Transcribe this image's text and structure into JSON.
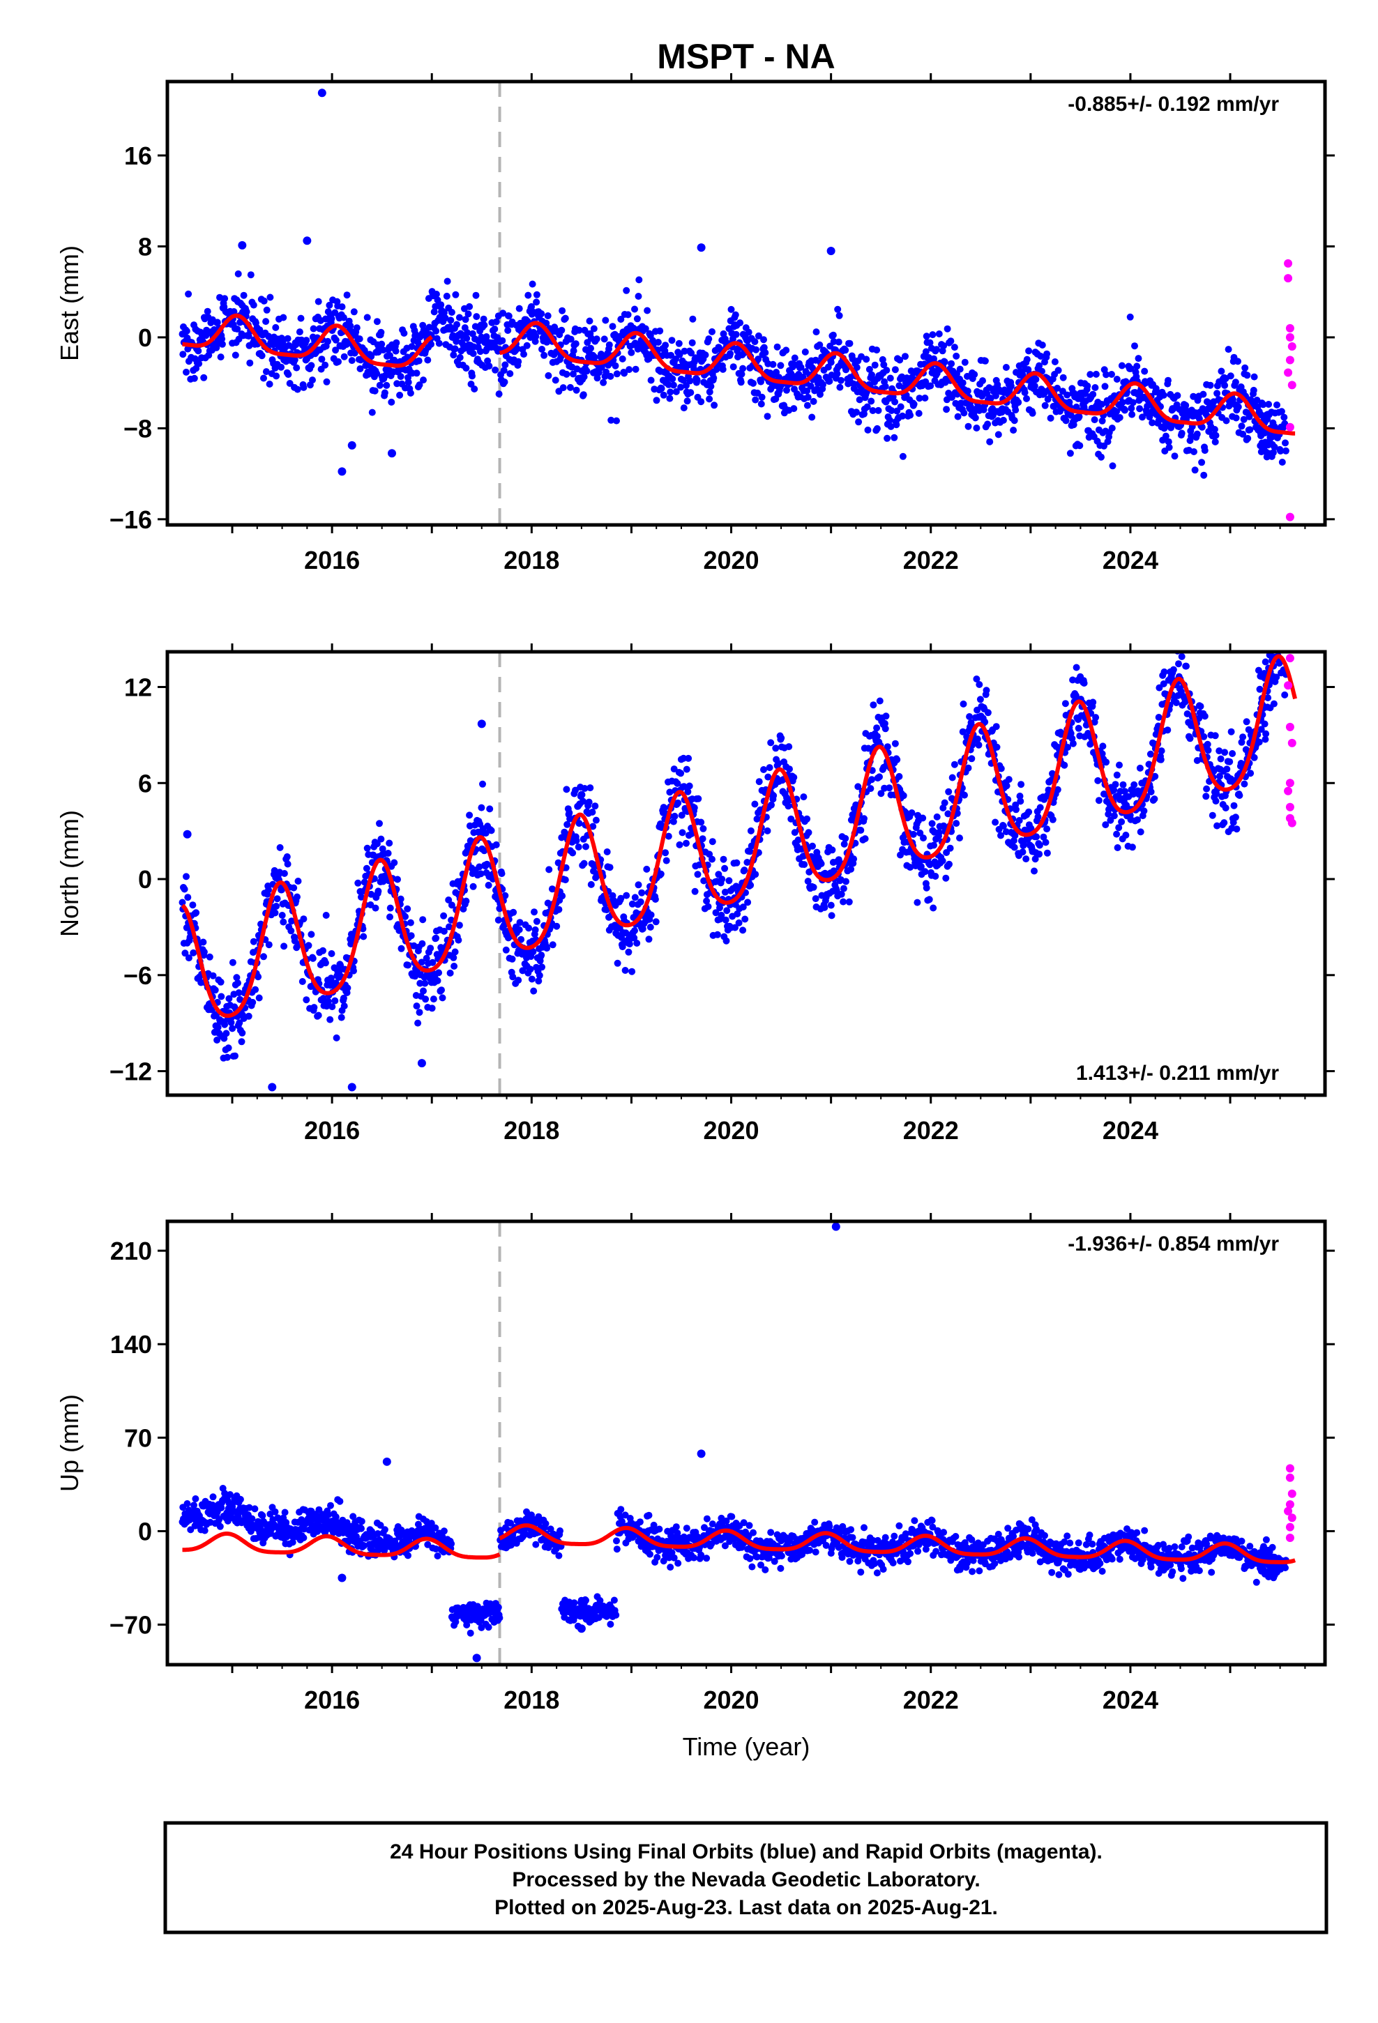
{
  "title": "MSPT - NA",
  "footer": {
    "lines": [
      "24 Hour Positions Using Final Orbits (blue) and Rapid Orbits (magenta).",
      "Processed by the Nevada Geodetic Laboratory.",
      "Plotted on 2025-Aug-23. Last data on 2025-Aug-21."
    ]
  },
  "colors": {
    "final": "#0000ff",
    "rapid": "#ff00ff",
    "model": "#ff0000",
    "offset_line": "#b4b4b4",
    "frame": "#000000"
  },
  "chart_data": [
    {
      "type": "scatter",
      "name": "east",
      "ylabel": "East (mm)",
      "xlim": [
        2014.35,
        2025.95
      ],
      "ylim": [
        -16.5,
        22.5
      ],
      "yticks": [
        -16,
        -8,
        0,
        8,
        16
      ],
      "xticks": [
        2016,
        2018,
        2020,
        2022,
        2024
      ],
      "tick_labels": [
        "2016",
        "2018",
        "2020",
        "2022",
        "2024"
      ],
      "rate_label": "-0.885+/- 0.192 mm/yr",
      "rate_position": "top-right",
      "offset_epoch": 2017.68,
      "model": {
        "trend_start": 2014.5,
        "trend": [
          2.5,
          -0.885
        ],
        "annual": 1.5,
        "phase": 0.05,
        "semi": 0.4,
        "steps": [
          [
            2014.5,
            2017.0,
            -2.0
          ],
          [
            2017.68,
            2025.95,
            0.0
          ]
        ]
      },
      "scatter_sd": 1.6,
      "outliers_final": [
        [
          2015.9,
          21.5
        ],
        [
          2016.1,
          -11.8
        ],
        [
          2016.2,
          -9.5
        ],
        [
          2016.6,
          -10.2
        ],
        [
          2015.75,
          8.5
        ],
        [
          2015.1,
          8.1
        ],
        [
          2019.7,
          7.9
        ],
        [
          2021.0,
          7.6
        ]
      ],
      "rapid_points": [
        [
          2025.58,
          6.5
        ],
        [
          2025.58,
          5.2
        ],
        [
          2025.6,
          0.8
        ],
        [
          2025.6,
          0.0
        ],
        [
          2025.62,
          -0.8
        ],
        [
          2025.6,
          -2.0
        ],
        [
          2025.58,
          -3.1
        ],
        [
          2025.62,
          -4.2
        ],
        [
          2025.6,
          -7.9
        ],
        [
          2025.6,
          -15.8
        ]
      ]
    },
    {
      "type": "scatter",
      "name": "north",
      "ylabel": "North (mm)",
      "xlim": [
        2014.35,
        2025.95
      ],
      "ylim": [
        -13.5,
        14.2
      ],
      "yticks": [
        -12,
        -6,
        0,
        6,
        12
      ],
      "xticks": [
        2016,
        2018,
        2020,
        2022,
        2024
      ],
      "tick_labels": [
        "2016",
        "2018",
        "2020",
        "2022",
        "2024"
      ],
      "rate_label": "1.413+/- 0.211 mm/yr",
      "rate_position": "bottom-right",
      "offset_epoch": 2017.68,
      "model": {
        "trend_start": 2014.5,
        "trend": [
          -6.0,
          1.413
        ],
        "annual": 3.8,
        "phase": 0.48,
        "semi": 0.6,
        "steps": [
          [
            2014.5,
            2025.95,
            0.0
          ]
        ]
      },
      "scatter_sd": 1.3,
      "outliers_final": [
        [
          2017.5,
          9.7
        ],
        [
          2016.2,
          -13.0
        ],
        [
          2015.4,
          -13.0
        ],
        [
          2016.9,
          -11.5
        ],
        [
          2014.55,
          2.8
        ]
      ],
      "rapid_points": [
        [
          2025.6,
          13.8
        ],
        [
          2025.58,
          12.1
        ],
        [
          2025.6,
          9.5
        ],
        [
          2025.62,
          8.5
        ],
        [
          2025.6,
          6.0
        ],
        [
          2025.58,
          5.5
        ],
        [
          2025.6,
          4.5
        ],
        [
          2025.62,
          3.5
        ],
        [
          2025.6,
          3.8
        ]
      ]
    },
    {
      "type": "scatter",
      "name": "up",
      "ylabel": "Up (mm)",
      "xlim": [
        2014.35,
        2025.95
      ],
      "ylim": [
        -100,
        232
      ],
      "yticks": [
        -70,
        0,
        70,
        140,
        210
      ],
      "xticks": [
        2016,
        2018,
        2020,
        2022,
        2024
      ],
      "tick_labels": [
        "2016",
        "2018",
        "2020",
        "2022",
        "2024"
      ],
      "xlabel": "Time (year)",
      "rate_label": "-1.936+/- 0.854 mm/yr",
      "rate_position": "top-right",
      "offset_epoch": 2017.68,
      "model": {
        "trend_start": 2014.5,
        "trend": [
          -9.0,
          -1.936
        ],
        "annual": 6.5,
        "phase": 0.95,
        "semi": 1.5,
        "steps": [
          [
            2014.5,
            2017.68,
            0.0
          ],
          [
            2017.68,
            2025.95,
            12.0
          ]
        ]
      },
      "scatter_sd": 6.0,
      "segments_final": [
        {
          "from": 2014.5,
          "to": 2017.2,
          "offset": 25.0
        },
        {
          "from": 2017.2,
          "to": 2017.68,
          "offset": -38.0,
          "level": -62
        },
        {
          "from": 2017.68,
          "to": 2018.3,
          "offset": 0.0
        },
        {
          "from": 2018.3,
          "to": 2018.85,
          "offset": -50.0,
          "level": -60
        },
        {
          "from": 2018.85,
          "to": 2025.45,
          "offset": 0.0
        }
      ],
      "outliers_final": [
        [
          2021.05,
          228
        ],
        [
          2019.7,
          58
        ],
        [
          2016.55,
          52
        ],
        [
          2017.45,
          -95
        ],
        [
          2016.1,
          -35
        ],
        [
          2018.5,
          -73
        ]
      ],
      "rapid_points": [
        [
          2025.6,
          47
        ],
        [
          2025.6,
          40
        ],
        [
          2025.62,
          28
        ],
        [
          2025.6,
          20
        ],
        [
          2025.58,
          15
        ],
        [
          2025.62,
          10
        ],
        [
          2025.6,
          3
        ],
        [
          2025.6,
          -5
        ]
      ]
    }
  ]
}
